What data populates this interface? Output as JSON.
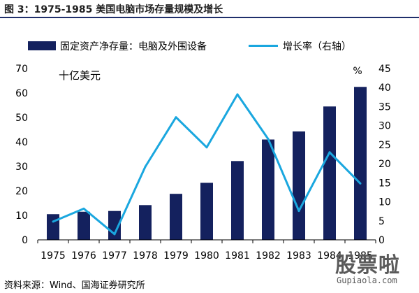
{
  "figure": {
    "title": "图 3：1975-1985  美国电脑市场存量规模及增长",
    "source": "资料来源：Wind、国海证券研究所"
  },
  "watermark": {
    "text": "股票啦",
    "url": "Gupiaola.com"
  },
  "colors": {
    "bar": "#14215e",
    "line": "#1aa7df",
    "title_rule": "#1f2f6b"
  },
  "chart_data": {
    "type": "bar",
    "categories": [
      "1975",
      "1976",
      "1977",
      "1978",
      "1979",
      "1980",
      "1981",
      "1982",
      "1983",
      "1984",
      "1985"
    ],
    "series": [
      {
        "name": "固定资产净存量：电脑及外围设备",
        "type": "bar",
        "axis": "left",
        "values": [
          10.5,
          11.5,
          11.8,
          14.2,
          18.8,
          23.3,
          32.2,
          41.0,
          44.3,
          54.5,
          62.5
        ]
      },
      {
        "name": "增长率（右轴）",
        "type": "line",
        "axis": "right",
        "values": [
          4.8,
          8.2,
          1.5,
          19.2,
          32.2,
          24.3,
          38.2,
          26.5,
          7.6,
          23.0,
          14.8
        ]
      }
    ],
    "yleft": {
      "label": "十亿美元",
      "lim": [
        0,
        70
      ],
      "ticks": [
        0,
        10,
        20,
        30,
        40,
        50,
        60,
        70
      ]
    },
    "yright": {
      "label": "%",
      "lim": [
        0,
        45
      ],
      "ticks": [
        0,
        5,
        10,
        15,
        20,
        25,
        30,
        35,
        40,
        45
      ]
    },
    "legend": "top",
    "grid": false
  }
}
